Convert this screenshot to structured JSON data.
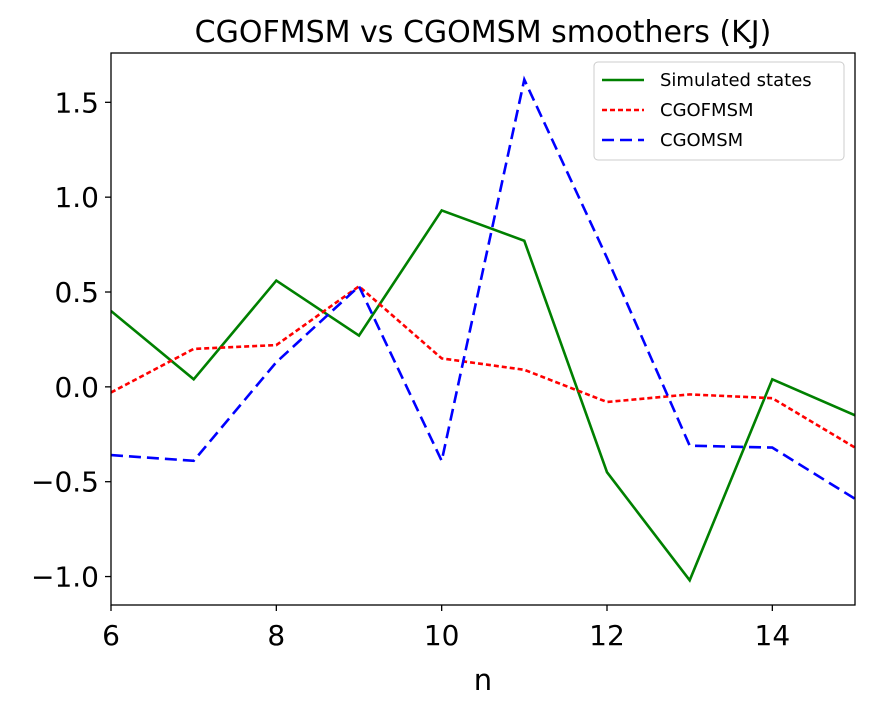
{
  "chart_data": {
    "type": "line",
    "title": "CGOFMSM vs CGOMSM smoothers (KJ)",
    "xlabel": "n",
    "ylabel": "",
    "xlim": [
      6,
      15
    ],
    "ylim": [
      -1.15,
      1.76
    ],
    "x_ticks": [
      6,
      8,
      10,
      12,
      14
    ],
    "x_tick_labels": [
      "6",
      "8",
      "10",
      "12",
      "14"
    ],
    "y_ticks": [
      -1.0,
      -0.5,
      0.0,
      0.5,
      1.0,
      1.5
    ],
    "y_tick_labels": [
      "−1.0",
      "−0.5",
      "0.0",
      "0.5",
      "1.0",
      "1.5"
    ],
    "grid": false,
    "legend_position": "top-right",
    "x": [
      6,
      7,
      8,
      9,
      10,
      11,
      12,
      13,
      14,
      15
    ],
    "series": [
      {
        "name": "Simulated states",
        "color": "#008000",
        "dash": "solid",
        "values": [
          0.4,
          0.04,
          0.56,
          0.27,
          0.93,
          0.77,
          -0.45,
          -1.02,
          0.04,
          -0.15
        ]
      },
      {
        "name": "CGOFMSM",
        "color": "#ff0000",
        "dash": "dotted",
        "values": [
          -0.03,
          0.2,
          0.22,
          0.53,
          0.15,
          0.09,
          -0.08,
          -0.04,
          -0.06,
          -0.32
        ]
      },
      {
        "name": "CGOMSM",
        "color": "#0000ff",
        "dash": "dashed",
        "values": [
          -0.36,
          -0.39,
          0.13,
          0.53,
          -0.39,
          1.62,
          0.68,
          -0.31,
          -0.32,
          -0.59
        ]
      }
    ]
  }
}
